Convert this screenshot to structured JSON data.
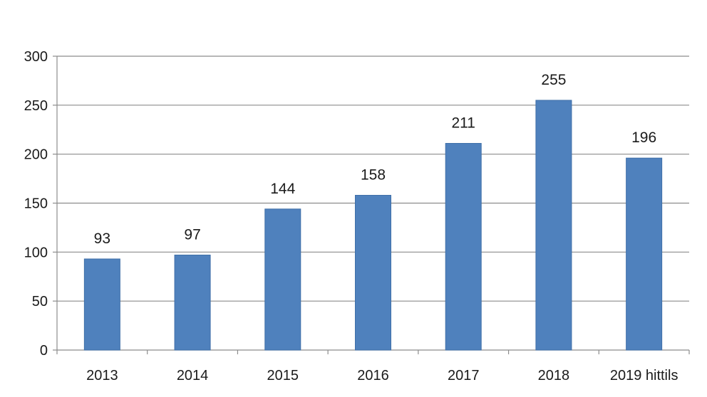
{
  "chart_data": {
    "type": "bar",
    "title": "",
    "xlabel": "",
    "ylabel": "",
    "categories": [
      "2013",
      "2014",
      "2015",
      "2016",
      "2017",
      "2018",
      "2019 hittils"
    ],
    "values": [
      93,
      97,
      144,
      158,
      211,
      255,
      196
    ],
    "data_labels": [
      "93",
      "97",
      "144",
      "158",
      "211",
      "255",
      "196"
    ],
    "ylim": [
      0,
      300
    ],
    "yticks": [
      0,
      50,
      100,
      150,
      200,
      250,
      300
    ],
    "ytick_labels": [
      "0",
      "50",
      "100",
      "150",
      "200",
      "250",
      "300"
    ],
    "grid": true,
    "legend": "none",
    "colors": {
      "bar": "#4f81bd",
      "bar_edge": "#3f6fa8",
      "grid": "#8c8c8c",
      "axis": "#8c8c8c",
      "text": "#1a1a1a"
    }
  }
}
